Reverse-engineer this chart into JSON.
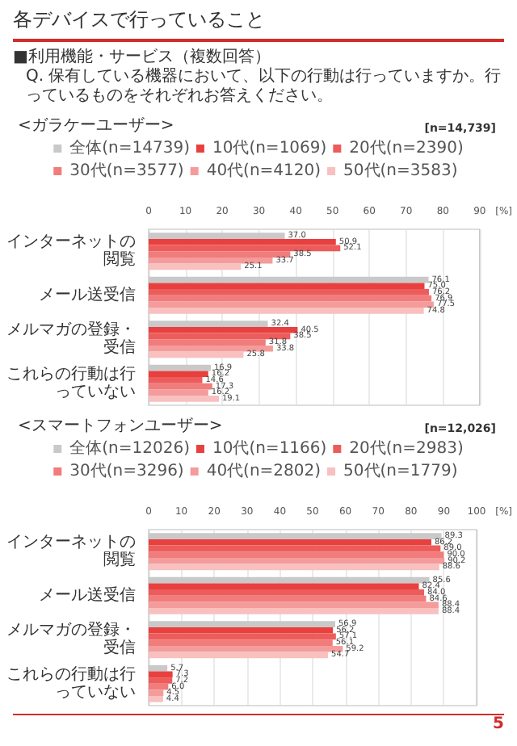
{
  "chart_data": [
    {
      "type": "bar",
      "orientation": "horizontal",
      "title": "<ガラケーユーザー>",
      "subtitle": "[n=14,739]",
      "xlabel": "[%]",
      "annotations": [
        "各デバイスで行っていること",
        "■利用機能・サービス（複数回答）",
        "Q. 保有している機器において、以下の行動は行っていますか。行っているものをそれぞれお答えください。"
      ],
      "categories": [
        "インターネットの閲覧",
        "メール送受信",
        "メルマガの登録・受信",
        "これらの行動は行っていない"
      ],
      "xlim": [
        0,
        90
      ],
      "xticks": [
        0,
        10,
        20,
        30,
        40,
        50,
        60,
        70,
        80,
        90
      ],
      "grid": "x",
      "legend": "top",
      "series": [
        {
          "name": "全体(n=14739)",
          "color": "#c9c9c9",
          "values": [
            37.0,
            76.1,
            32.4,
            16.9
          ],
          "value_labels": [
            "37.0",
            "76.1",
            "32.4",
            "16.9"
          ]
        },
        {
          "name": "10代(n=1069)",
          "color": "#e8403f",
          "values": [
            50.9,
            75.0,
            40.5,
            16.2
          ],
          "value_labels": [
            "50.9",
            "75.0",
            "40.5",
            "16.2"
          ]
        },
        {
          "name": "20代(n=2390)",
          "color": "#ec5c5b",
          "values": [
            52.1,
            76.2,
            38.5,
            14.6
          ],
          "value_labels": [
            "52.1",
            "76.2",
            "38.5",
            "14.6"
          ]
        },
        {
          "name": "30代(n=3577)",
          "color": "#f07c7b",
          "values": [
            38.5,
            76.9,
            31.8,
            17.3
          ],
          "value_labels": [
            "38.5",
            "76.9",
            "31.8",
            "17.3"
          ]
        },
        {
          "name": "40代(n=4120)",
          "color": "#f49c9b",
          "values": [
            33.7,
            77.5,
            33.8,
            16.2
          ],
          "value_labels": [
            "33.7",
            "77.5",
            "33.8",
            "16.2"
          ]
        },
        {
          "name": "50代(n=3583)",
          "color": "#f8c0bf",
          "values": [
            25.1,
            74.8,
            25.8,
            19.1
          ],
          "value_labels": [
            "25.1",
            "74.8",
            "25.8",
            "19.1"
          ]
        }
      ]
    },
    {
      "type": "bar",
      "orientation": "horizontal",
      "title": "<スマートフォンユーザー>",
      "subtitle": "[n=12,026]",
      "xlabel": "[%]",
      "annotations": [
        "5"
      ],
      "categories": [
        "インターネットの閲覧",
        "メール送受信",
        "メルマガの登録・受信",
        "これらの行動は行っていない"
      ],
      "xlim": [
        0,
        100
      ],
      "xticks": [
        0,
        10,
        20,
        30,
        40,
        50,
        60,
        70,
        80,
        90,
        100
      ],
      "grid": "x",
      "legend": "top",
      "series": [
        {
          "name": "全体(n=12026)",
          "color": "#c9c9c9",
          "values": [
            89.3,
            85.6,
            56.9,
            5.7
          ],
          "value_labels": [
            "89.3",
            "85.6",
            "56.9",
            "5.7"
          ]
        },
        {
          "name": "10代(n=1166)",
          "color": "#e8403f",
          "values": [
            86.2,
            82.4,
            56.2,
            7.3
          ],
          "value_labels": [
            "86.2",
            "82.4",
            "56.2",
            "7.3"
          ]
        },
        {
          "name": "20代(n=2983)",
          "color": "#ec5c5b",
          "values": [
            89.0,
            84.0,
            57.1,
            7.2
          ],
          "value_labels": [
            "89.0",
            "84.0",
            "57.1",
            "7.2"
          ]
        },
        {
          "name": "30代(n=3296)",
          "color": "#f07c7b",
          "values": [
            90.0,
            84.6,
            56.1,
            6.0
          ],
          "value_labels": [
            "90.0",
            "84.6",
            "56.1",
            "6.0"
          ]
        },
        {
          "name": "40代(n=2802)",
          "color": "#f49c9b",
          "values": [
            90.2,
            88.4,
            59.2,
            4.5
          ],
          "value_labels": [
            "90.2",
            "88.4",
            "59.2",
            "4.5"
          ]
        },
        {
          "name": "50代(n=1779)",
          "color": "#f8c0bf",
          "values": [
            88.6,
            88.4,
            54.7,
            4.4
          ],
          "value_labels": [
            "88.6",
            "88.4",
            "54.7",
            "4.4"
          ]
        }
      ]
    }
  ]
}
